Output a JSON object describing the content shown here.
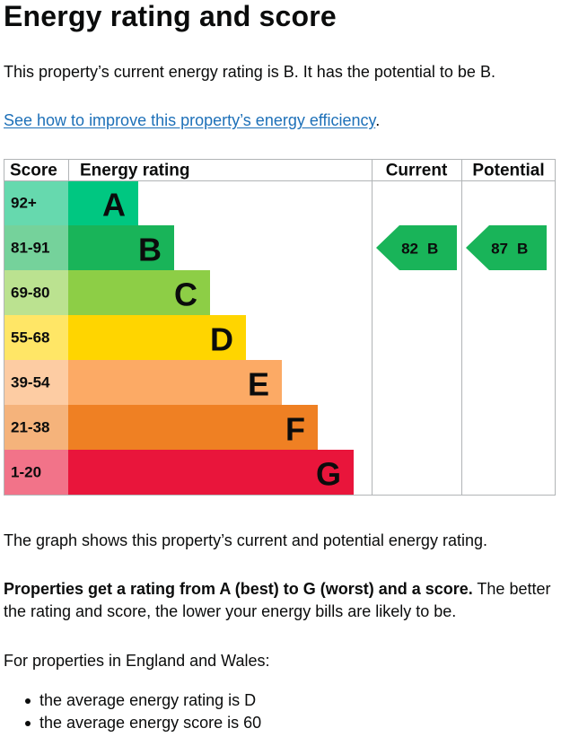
{
  "page": {
    "title": "Energy rating and score",
    "intro": "This property’s current energy rating is B. It has the potential to be B.",
    "improve_link": "See how to improve this property’s energy efficiency",
    "improve_link_suffix": "."
  },
  "graph": {
    "headers": {
      "score": "Score",
      "rating": "Energy rating",
      "current": "Current",
      "potential": "Potential"
    },
    "bands": [
      {
        "score": "92+",
        "letter": "A",
        "color": "#00c781",
        "score_bg": "#66d9ae"
      },
      {
        "score": "81-91",
        "letter": "B",
        "color": "#19b459",
        "score_bg": "#75d29b"
      },
      {
        "score": "69-80",
        "letter": "C",
        "color": "#8dce46",
        "score_bg": "#bbe290"
      },
      {
        "score": "55-68",
        "letter": "D",
        "color": "#ffd500",
        "score_bg": "#ffe666"
      },
      {
        "score": "39-54",
        "letter": "E",
        "color": "#fcaa65",
        "score_bg": "#fdcca3"
      },
      {
        "score": "21-38",
        "letter": "F",
        "color": "#ef8023",
        "score_bg": "#f5b37b"
      },
      {
        "score": "1-20",
        "letter": "G",
        "color": "#e9153b",
        "score_bg": "#f27389"
      }
    ],
    "current": {
      "score": "82",
      "letter": "B",
      "band": "B",
      "color": "#19b459"
    },
    "potential": {
      "score": "87",
      "letter": "B",
      "band": "B",
      "color": "#19b459"
    }
  },
  "text": {
    "graph_caption": "The graph shows this property’s current and potential energy rating.",
    "properties_bold": "Properties get a rating from A (best) to G (worst) and a score.",
    "properties_rest": " The better the rating and score, the lower your energy bills are likely to be.",
    "england_wales": "For properties in England and Wales:",
    "bullets": [
      "the average energy rating is D",
      "the average energy score is 60"
    ]
  }
}
